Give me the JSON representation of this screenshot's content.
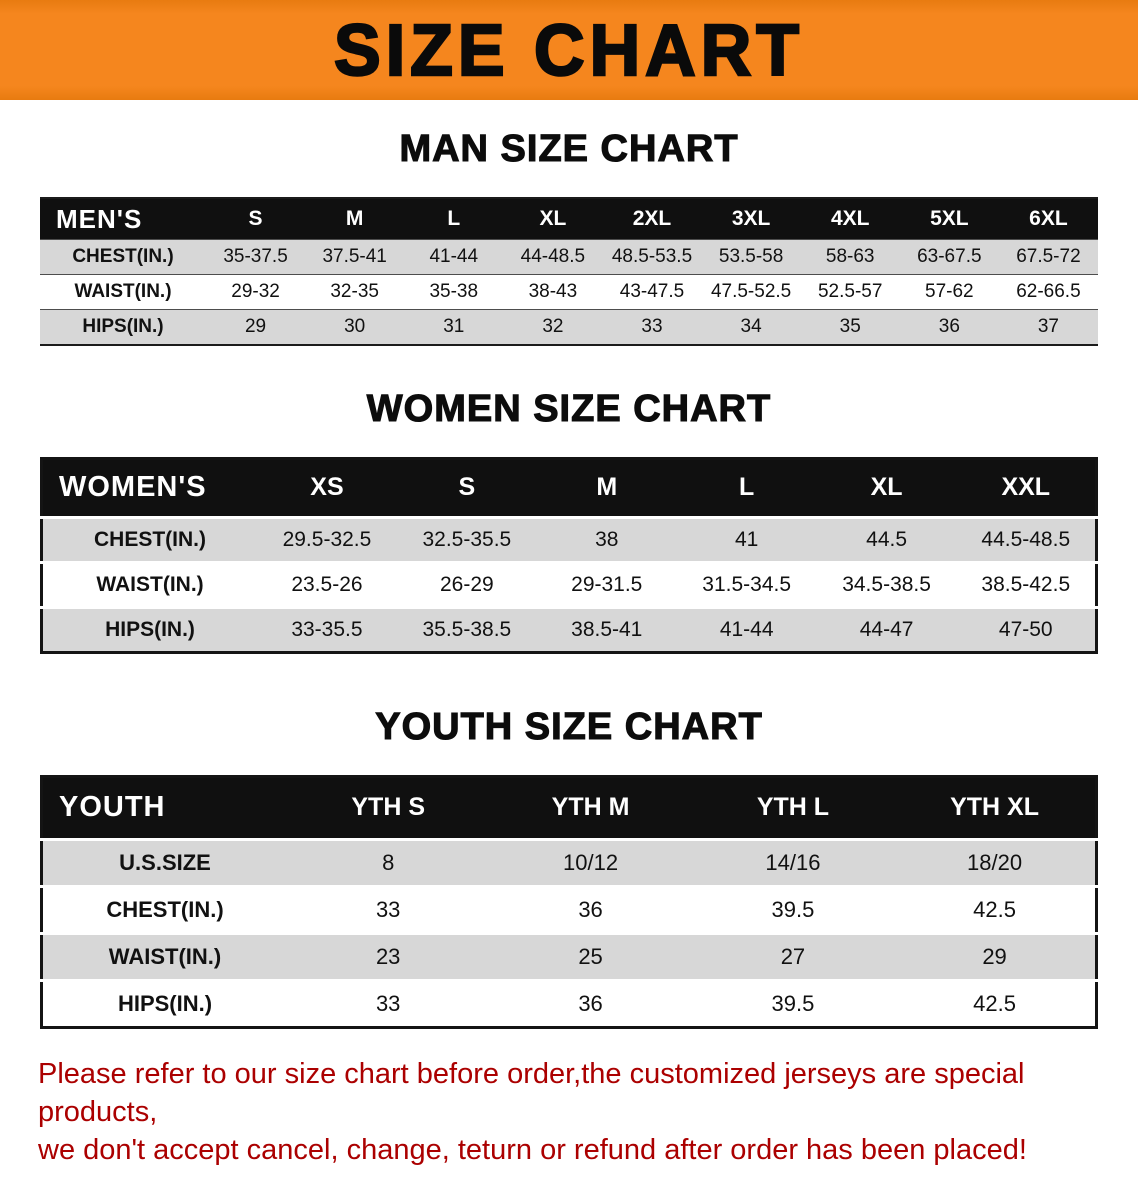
{
  "banner": {
    "title": "SIZE CHART"
  },
  "men": {
    "heading": "MAN SIZE CHART",
    "corner": "MEN'S",
    "sizes": [
      "S",
      "M",
      "L",
      "XL",
      "2XL",
      "3XL",
      "4XL",
      "5XL",
      "6XL"
    ],
    "rows": [
      {
        "label": "CHEST(IN.)",
        "values": [
          "35-37.5",
          "37.5-41",
          "41-44",
          "44-48.5",
          "48.5-53.5",
          "53.5-58",
          "58-63",
          "63-67.5",
          "67.5-72"
        ]
      },
      {
        "label": "WAIST(IN.)",
        "values": [
          "29-32",
          "32-35",
          "35-38",
          "38-43",
          "43-47.5",
          "47.5-52.5",
          "52.5-57",
          "57-62",
          "62-66.5"
        ]
      },
      {
        "label": "HIPS(IN.)",
        "values": [
          "29",
          "30",
          "31",
          "32",
          "33",
          "34",
          "35",
          "36",
          "37"
        ]
      }
    ]
  },
  "women": {
    "heading": "WOMEN SIZE CHART",
    "corner": "WOMEN'S",
    "sizes": [
      "XS",
      "S",
      "M",
      "L",
      "XL",
      "XXL"
    ],
    "rows": [
      {
        "label": "CHEST(IN.)",
        "values": [
          "29.5-32.5",
          "32.5-35.5",
          "38",
          "41",
          "44.5",
          "44.5-48.5"
        ]
      },
      {
        "label": "WAIST(IN.)",
        "values": [
          "23.5-26",
          "26-29",
          "29-31.5",
          "31.5-34.5",
          "34.5-38.5",
          "38.5-42.5"
        ]
      },
      {
        "label": "HIPS(IN.)",
        "values": [
          "33-35.5",
          "35.5-38.5",
          "38.5-41",
          "41-44",
          "44-47",
          "47-50"
        ]
      }
    ]
  },
  "youth": {
    "heading": "YOUTH SIZE CHART",
    "corner": "YOUTH",
    "sizes": [
      "YTH S",
      "YTH M",
      "YTH L",
      "YTH XL"
    ],
    "rows": [
      {
        "label": "U.S.SIZE",
        "values": [
          "8",
          "10/12",
          "14/16",
          "18/20"
        ]
      },
      {
        "label": "CHEST(IN.)",
        "values": [
          "33",
          "36",
          "39.5",
          "42.5"
        ]
      },
      {
        "label": "WAIST(IN.)",
        "values": [
          "23",
          "25",
          "27",
          "29"
        ]
      },
      {
        "label": "HIPS(IN.)",
        "values": [
          "33",
          "36",
          "39.5",
          "42.5"
        ]
      }
    ]
  },
  "footer": {
    "line1": "Please refer to our size chart before order,the customized jerseys are special products,",
    "line2": "we don't accept cancel, change, teturn or refund after order has been placed!"
  },
  "colors": {
    "banner_orange": "#f5861e",
    "header_black": "#101010",
    "row_gray": "#d7d7d7",
    "footer_red": "#ab0000"
  }
}
